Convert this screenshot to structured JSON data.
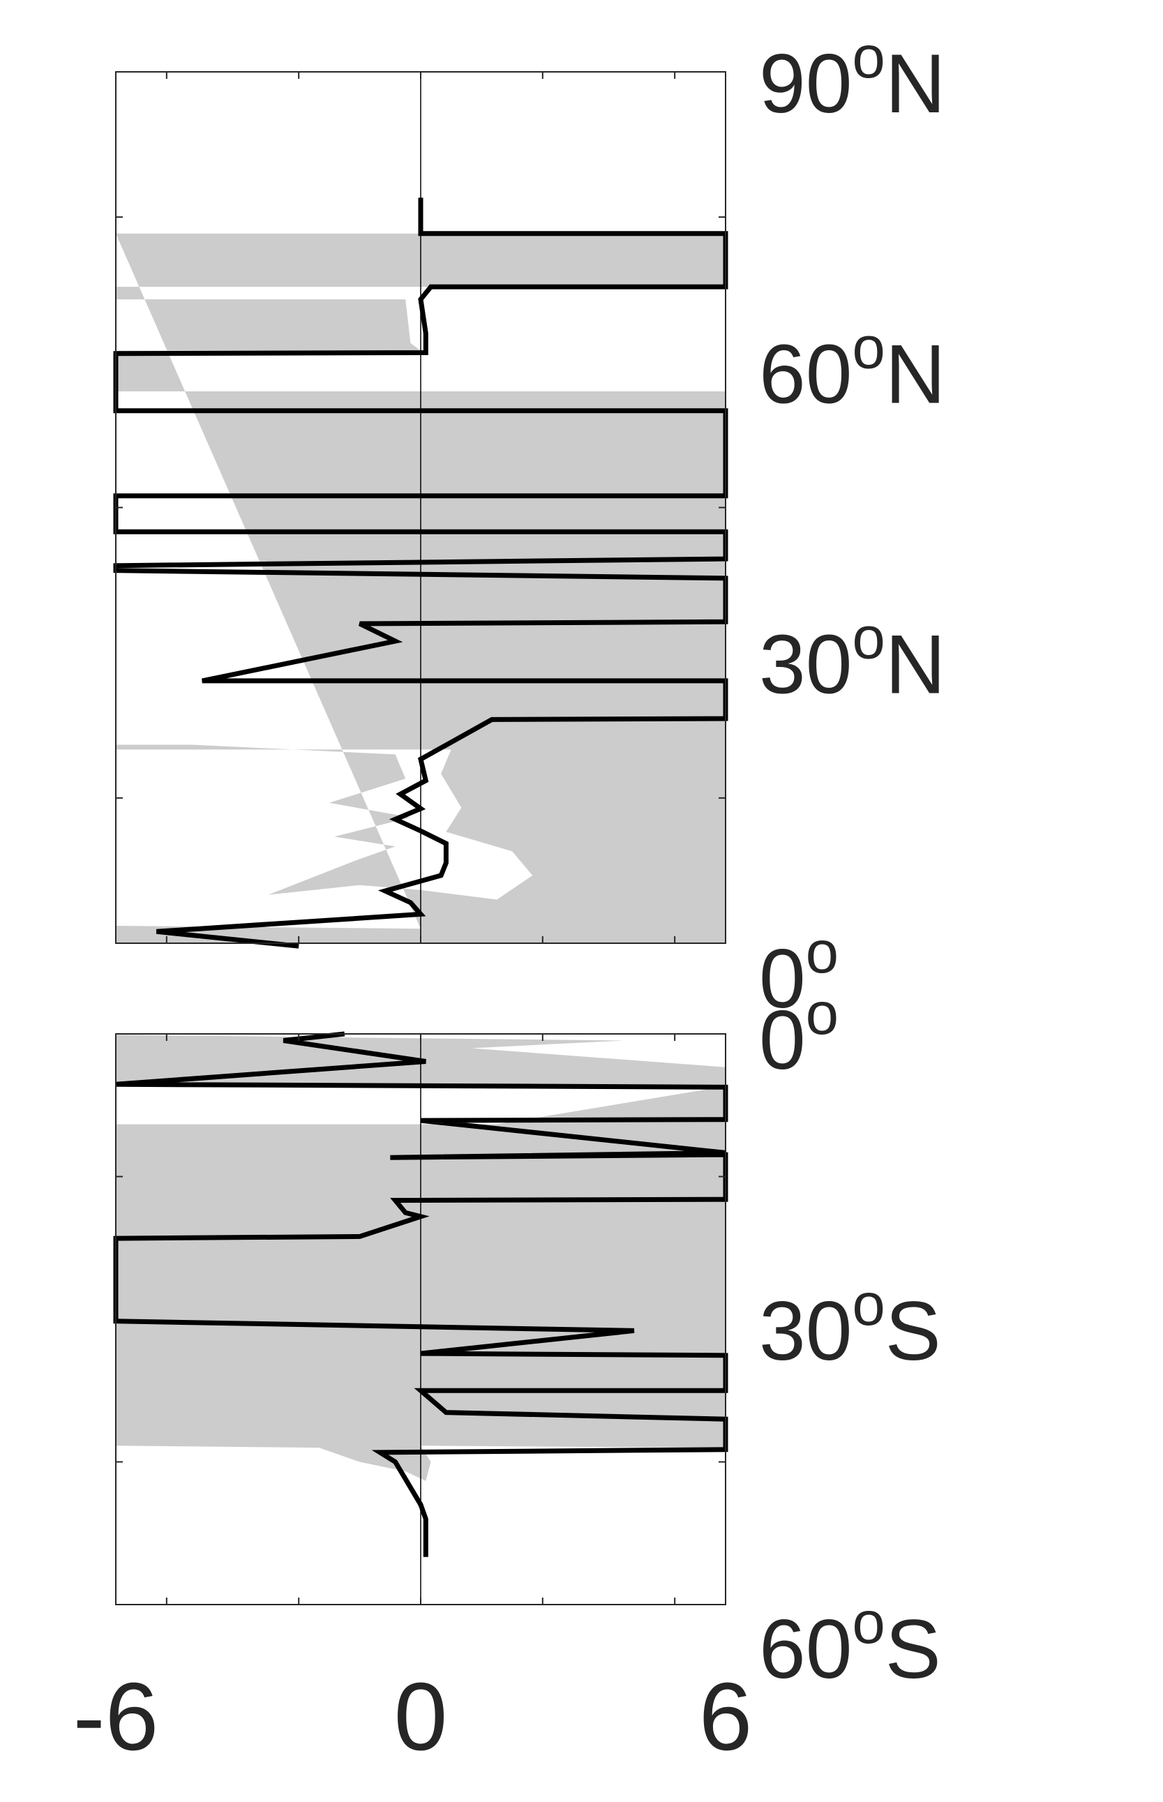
{
  "chart_data": [
    {
      "type": "line",
      "panel": "north",
      "xlim": [
        -6,
        6
      ],
      "ylim": [
        0,
        90
      ],
      "x_zero_line": true,
      "grid": false,
      "legend": "none",
      "y_tick_labels": [
        {
          "value": 90,
          "deg": "90",
          "hemi": "N"
        },
        {
          "value": 60,
          "deg": "60",
          "hemi": "N"
        },
        {
          "value": 30,
          "deg": "30",
          "hemi": "N"
        },
        {
          "value": 0,
          "deg": "0",
          "hemi": ""
        }
      ],
      "y_minor_ticks": [
        15,
        45,
        75
      ],
      "series": [
        {
          "kind": "shaded-range",
          "color": "#cccccc",
          "points": [
            [
              -6,
              73.3
            ],
            [
              0,
              73.3
            ],
            [
              6,
              73.3
            ],
            [
              6,
              67.8
            ],
            [
              0,
              67.8
            ],
            [
              -6,
              67.8
            ],
            [
              -6,
              66.5
            ],
            [
              -0.3,
              66.5
            ],
            [
              -0.2,
              62
            ],
            [
              0,
              61.2
            ],
            [
              -6,
              61.2
            ],
            [
              -6,
              57
            ],
            [
              6,
              57
            ],
            [
              6,
              20
            ],
            [
              -6,
              20
            ],
            [
              -6,
              20.5
            ],
            [
              -4.5,
              20.5
            ],
            [
              -0.5,
              19.5
            ],
            [
              -0.3,
              17
            ],
            [
              -1.8,
              14.5
            ],
            [
              -0.2,
              13
            ],
            [
              -1.7,
              11
            ],
            [
              -0.5,
              10
            ],
            [
              -1.3,
              8.5
            ],
            [
              -3,
              5
            ],
            [
              -1.2,
              6
            ],
            [
              0,
              5.5
            ],
            [
              1.5,
              4.5
            ],
            [
              2.2,
              7
            ],
            [
              1.8,
              9.5
            ],
            [
              0.5,
              11.5
            ],
            [
              0.8,
              14
            ],
            [
              0.4,
              17.5
            ],
            [
              0.6,
              20
            ],
            [
              6,
              20
            ],
            [
              6,
              0
            ],
            [
              -6,
              0
            ],
            [
              -6,
              1.8
            ],
            [
              0,
              1.5
            ]
          ]
        },
        {
          "kind": "line",
          "color": "#000000",
          "points": [
            [
              0,
              77
            ],
            [
              0,
              73.3
            ],
            [
              6,
              73.3
            ],
            [
              6,
              67.8
            ],
            [
              0.2,
              67.8
            ],
            [
              0,
              66.5
            ],
            [
              0.1,
              63
            ],
            [
              0.1,
              61
            ],
            [
              -6,
              60.9
            ],
            [
              -6,
              55
            ],
            [
              6,
              55
            ],
            [
              6,
              46.2
            ],
            [
              -6,
              46.2
            ],
            [
              -6,
              42.5
            ],
            [
              6,
              42.5
            ],
            [
              6,
              39.7
            ],
            [
              -6,
              39
            ],
            [
              -6,
              38.5
            ],
            [
              6,
              37.7
            ],
            [
              6,
              33.2
            ],
            [
              -1.2,
              33
            ],
            [
              -0.5,
              31.2
            ],
            [
              -4.3,
              27.1
            ],
            [
              6,
              27.1
            ],
            [
              6,
              23.2
            ],
            [
              1.4,
              23.1
            ],
            [
              0,
              19
            ],
            [
              0.1,
              16.8
            ],
            [
              -0.4,
              15.4
            ],
            [
              0,
              13.9
            ],
            [
              -0.5,
              12.8
            ],
            [
              0,
              11.6
            ],
            [
              0.5,
              10.3
            ],
            [
              0.5,
              8.3
            ],
            [
              0.4,
              7
            ],
            [
              -0.7,
              5.4
            ],
            [
              -0.2,
              4.2
            ],
            [
              0,
              3
            ],
            [
              -5.2,
              1.2
            ],
            [
              -2.4,
              -0.3
            ]
          ]
        }
      ]
    },
    {
      "type": "line",
      "panel": "south",
      "xlim": [
        -6,
        6
      ],
      "ylim": [
        -60,
        0
      ],
      "x_zero_line": true,
      "grid": false,
      "legend": "none",
      "x_tick_labels": [
        "-6",
        "0",
        "6"
      ],
      "y_tick_labels": [
        {
          "value": 0,
          "deg": "0",
          "hemi": ""
        },
        {
          "value": -30,
          "deg": "30",
          "hemi": "S"
        },
        {
          "value": -60,
          "deg": "60",
          "hemi": "S"
        }
      ],
      "y_minor_ticks": [
        -15,
        -45
      ],
      "series": [
        {
          "kind": "shaded-range",
          "color": "#cccccc",
          "points": [
            [
              -6,
              -0.1
            ],
            [
              4,
              -0.7
            ],
            [
              1,
              -1.5
            ],
            [
              6,
              -3.5
            ],
            [
              6,
              -21.2
            ],
            [
              1.5,
              -21.3
            ],
            [
              0.5,
              -20
            ],
            [
              2,
              -18.5
            ],
            [
              6,
              -18.5
            ],
            [
              6,
              -15.5
            ],
            [
              0.3,
              -15.5
            ],
            [
              6,
              -14.8
            ],
            [
              6,
              -9.5
            ],
            [
              1.5,
              -9.5
            ],
            [
              6,
              -5.5
            ],
            [
              -6,
              -5.5
            ],
            [
              -6,
              -3
            ],
            [
              -6,
              -0.1
            ]
          ]
        },
        {
          "kind": "shaded-range-left",
          "color": "#cccccc",
          "points": [
            [
              -6,
              -9.5
            ],
            [
              6,
              -9.5
            ],
            [
              6,
              -43.5
            ],
            [
              0,
              -43.3
            ],
            [
              0.2,
              -45
            ],
            [
              0.1,
              -47
            ],
            [
              -0.3,
              -46
            ],
            [
              -1.2,
              -45
            ],
            [
              -2,
              -43.5
            ],
            [
              -6,
              -43.3
            ]
          ]
        },
        {
          "kind": "line",
          "color": "#000000",
          "points": [
            [
              -1.5,
              0
            ],
            [
              -2.7,
              -0.7
            ],
            [
              0.1,
              -2.9
            ],
            [
              -6,
              -5.3
            ],
            [
              6,
              -5.6
            ],
            [
              6,
              -9
            ],
            [
              0,
              -9.1
            ],
            [
              6,
              -12.5
            ],
            [
              -0.6,
              -13
            ],
            [
              6,
              -12.7
            ],
            [
              6,
              -17.4
            ],
            [
              -0.5,
              -17.5
            ],
            [
              -0.3,
              -18.8
            ],
            [
              0,
              -19.2
            ],
            [
              -1.2,
              -21.3
            ],
            [
              -6,
              -21.5
            ],
            [
              -6,
              -30.2
            ],
            [
              4.2,
              -31.2
            ],
            [
              0,
              -33.6
            ],
            [
              6,
              -33.8
            ],
            [
              6,
              -37.5
            ],
            [
              0,
              -37.5
            ],
            [
              0.5,
              -39.8
            ],
            [
              6,
              -40.5
            ],
            [
              6,
              -43.7
            ],
            [
              -0.8,
              -44
            ],
            [
              -0.5,
              -45
            ],
            [
              0,
              -49.5
            ],
            [
              0.1,
              -51
            ],
            [
              0.1,
              -55
            ]
          ]
        }
      ]
    }
  ]
}
